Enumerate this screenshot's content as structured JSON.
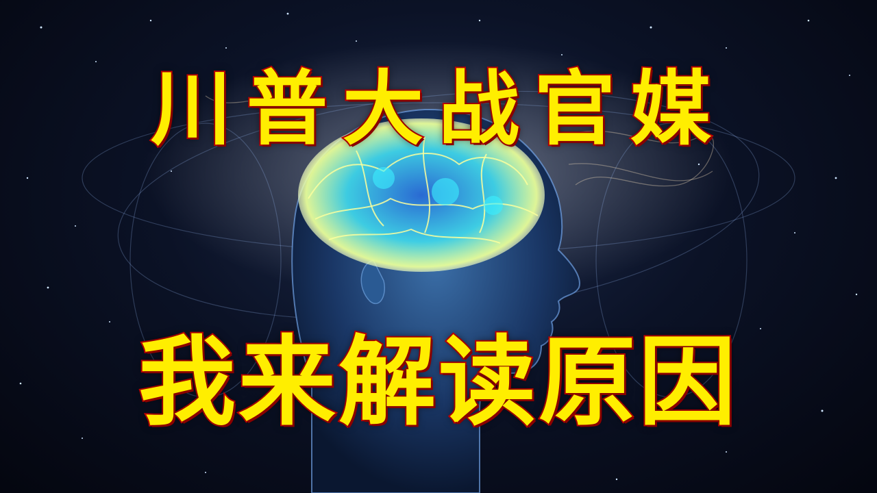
{
  "headline": {
    "line1": "川普大战官媒",
    "line2": "我来解读原因"
  },
  "colors": {
    "text_fill": "#ffee00",
    "text_outline": "#d40000",
    "background": "#050814",
    "brain_glow": "#7fe8ff"
  },
  "image": {
    "subject_icon": "glowing-brain-head-icon"
  }
}
